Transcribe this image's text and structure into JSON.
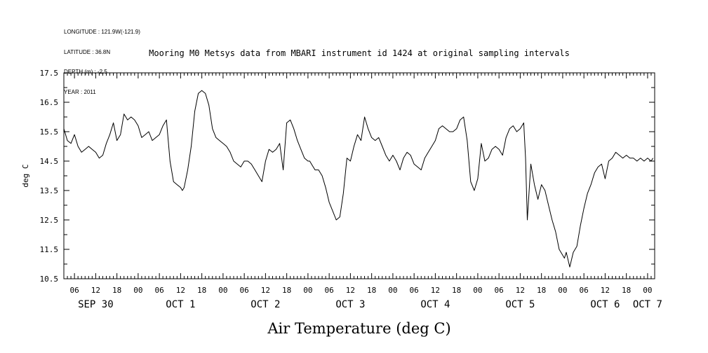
{
  "meta": {
    "longitude": "LONGITUDE : 121.9W(-121.9)",
    "latitude": "LATITUDE : 36.8N",
    "depth": "DEPTH (m) : -2.5",
    "year": "YEAR : 2011"
  },
  "chart_data": {
    "type": "line",
    "title": "Mooring M0 Metsys data from MBARI instrument id 1424 at original sampling intervals",
    "xlabel": "Air Temperature (deg C)",
    "ylabel": "deg C",
    "ylim": [
      10.5,
      17.5
    ],
    "yticks": [
      10.5,
      11.5,
      12.5,
      13.5,
      14.5,
      15.5,
      16.5,
      17.5
    ],
    "xlim": [
      "2011-09-30 03:00",
      "2011-10-07 02:00"
    ],
    "hour_ticks": [
      "06",
      "12",
      "18",
      "00",
      "06",
      "12",
      "18",
      "00",
      "06",
      "12",
      "18",
      "00",
      "06",
      "12",
      "18",
      "00",
      "06",
      "12",
      "18",
      "00",
      "06",
      "12",
      "18",
      "00",
      "06",
      "12",
      "18",
      "00"
    ],
    "day_labels": [
      "SEP 30",
      "OCT 1",
      "OCT 2",
      "OCT 3",
      "OCT 4",
      "OCT 5",
      "OCT 6",
      "OCT 7"
    ],
    "grid": false,
    "series": [
      {
        "x_hours_since_sep30_00": [
          3,
          4,
          5,
          6,
          7,
          8,
          9,
          10,
          11,
          12,
          13,
          14,
          15,
          16,
          17,
          18,
          19,
          20,
          21,
          22,
          23,
          24,
          25,
          26,
          27,
          28,
          29,
          30,
          31,
          32,
          33,
          34,
          35,
          36,
          36.5,
          37,
          38,
          39,
          40,
          41,
          42,
          43,
          44,
          45,
          46,
          47,
          48,
          49,
          50,
          51,
          52,
          53,
          54,
          55,
          56,
          57,
          58,
          59,
          60,
          61,
          62,
          63,
          64,
          65,
          66,
          67,
          68,
          69,
          70,
          71,
          72,
          72.5,
          73,
          74,
          75,
          76,
          77,
          78,
          79,
          80,
          81,
          82,
          83,
          84,
          85,
          86,
          87,
          88,
          89,
          90,
          91,
          92,
          93,
          94,
          95,
          96,
          97,
          98,
          99,
          100,
          101,
          102,
          103,
          104,
          105,
          106,
          107,
          108,
          109,
          110,
          111,
          112,
          113,
          114,
          115,
          116,
          117,
          118,
          119,
          120,
          121,
          122,
          123,
          124,
          125,
          126,
          127,
          128,
          129,
          130,
          131,
          132,
          133,
          133.5,
          134,
          135,
          136,
          137,
          138,
          139,
          140,
          141,
          142,
          143,
          144,
          144.5,
          145,
          146,
          147,
          148,
          149,
          150,
          151,
          152,
          153,
          154,
          155,
          156,
          157,
          158,
          159,
          160,
          161,
          162,
          163,
          164,
          165,
          166,
          167,
          168,
          169,
          169.5
        ],
        "values": [
          15.6,
          15.2,
          15.1,
          15.4,
          15.0,
          14.8,
          14.9,
          15.0,
          14.9,
          14.8,
          14.6,
          14.7,
          15.1,
          15.4,
          15.8,
          15.2,
          15.4,
          16.1,
          15.9,
          16.0,
          15.9,
          15.7,
          15.3,
          15.4,
          15.5,
          15.2,
          15.3,
          15.4,
          15.7,
          15.9,
          14.5,
          13.8,
          13.7,
          13.6,
          13.5,
          13.6,
          14.2,
          15.0,
          16.2,
          16.8,
          16.9,
          16.8,
          16.4,
          15.6,
          15.3,
          15.2,
          15.1,
          15.0,
          14.8,
          14.5,
          14.4,
          14.3,
          14.5,
          14.5,
          14.4,
          14.2,
          14.0,
          13.8,
          14.5,
          14.9,
          14.8,
          14.9,
          15.1,
          14.2,
          15.8,
          15.9,
          15.6,
          15.2,
          14.9,
          14.6,
          14.5,
          14.5,
          14.4,
          14.2,
          14.2,
          14.0,
          13.6,
          13.1,
          12.8,
          12.5,
          12.6,
          13.4,
          14.6,
          14.5,
          15.0,
          15.4,
          15.2,
          16.0,
          15.6,
          15.3,
          15.2,
          15.3,
          15.0,
          14.7,
          14.5,
          14.7,
          14.5,
          14.2,
          14.6,
          14.8,
          14.7,
          14.4,
          14.3,
          14.2,
          14.6,
          14.8,
          15.0,
          15.2,
          15.6,
          15.7,
          15.6,
          15.5,
          15.5,
          15.6,
          15.9,
          16.0,
          15.2,
          13.8,
          13.5,
          13.9,
          15.1,
          14.5,
          14.6,
          14.9,
          15.0,
          14.9,
          14.7,
          15.3,
          15.6,
          15.7,
          15.5,
          15.6,
          15.8,
          14.6,
          12.5,
          14.4,
          13.7,
          13.2,
          13.7,
          13.5,
          13.0,
          12.5,
          12.1,
          11.5,
          11.3,
          11.2,
          11.4,
          10.9,
          11.4,
          11.6,
          12.3,
          12.9,
          13.4,
          13.7,
          14.1,
          14.3,
          14.4,
          13.9,
          14.5,
          14.6,
          14.8,
          14.7,
          14.6,
          14.7,
          14.6,
          14.6,
          14.5,
          14.6,
          14.5,
          14.6,
          14.5,
          14.6,
          14.6
        ]
      }
    ]
  }
}
